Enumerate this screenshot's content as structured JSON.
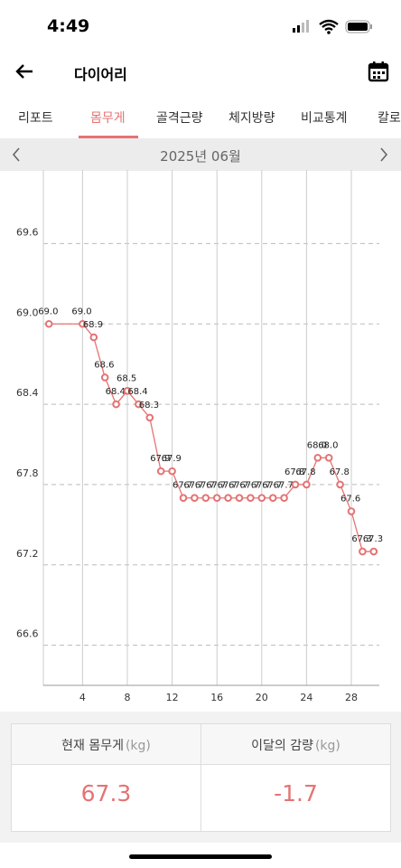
{
  "status_time": "4:49",
  "header": {
    "title": "다이어리"
  },
  "tabs": [
    "리포트",
    "몸무게",
    "골격근량",
    "체지방량",
    "비교통계",
    "칼로"
  ],
  "month": "2025년 06월",
  "chart_data": {
    "type": "line",
    "x": [
      1,
      4,
      5,
      6,
      7,
      8,
      9,
      10,
      11,
      12,
      13,
      14,
      15,
      16,
      17,
      18,
      19,
      20,
      21,
      22,
      23,
      24,
      25,
      26,
      27,
      28,
      29,
      30
    ],
    "series": [
      {
        "name": "몸무게",
        "color": "#e57373",
        "values": [
          69.0,
          69.0,
          68.9,
          68.6,
          68.4,
          68.5,
          68.4,
          68.3,
          67.9,
          67.9,
          67.7,
          67.7,
          67.7,
          67.7,
          67.7,
          67.7,
          67.7,
          67.7,
          67.7,
          67.7,
          67.8,
          67.8,
          68.0,
          68.0,
          67.8,
          67.6,
          67.3,
          67.3
        ],
        "value_labels": [
          "69.0",
          "69.0",
          "68.9",
          "68.6",
          "68.4",
          "68.5",
          "68.4",
          "68.3",
          "67.9",
          "67.9",
          "67.7",
          "67.7",
          "67.7",
          "67.7",
          "67.7",
          "67.7",
          "67.7",
          "67.7",
          "67.7",
          "67.7",
          "67.8",
          "67.8",
          "68.0",
          "68.0",
          "67.8",
          "67.6",
          "67.3",
          "67.3"
        ]
      }
    ],
    "xlim": [
      0.5,
      30.5
    ],
    "xticks": [
      4,
      8,
      12,
      16,
      20,
      24,
      28
    ],
    "ylim": [
      66.3,
      70.15
    ],
    "yticks": [
      {
        "value": 66.6,
        "label": "66.6"
      },
      {
        "value": 67.2,
        "label": "67.2"
      },
      {
        "value": 67.8,
        "label": "67.8"
      },
      {
        "value": 68.4,
        "label": "68.4"
      },
      {
        "value": 69.0,
        "label": "69.0"
      },
      {
        "value": 69.6,
        "label": "69.6"
      }
    ],
    "grid": true
  },
  "summary": {
    "headers": [
      {
        "label": "현재 몸무게",
        "unit": "(kg)"
      },
      {
        "label": "이달의 감량",
        "unit": "(kg)"
      }
    ],
    "values": [
      "67.3",
      "-1.7"
    ]
  }
}
